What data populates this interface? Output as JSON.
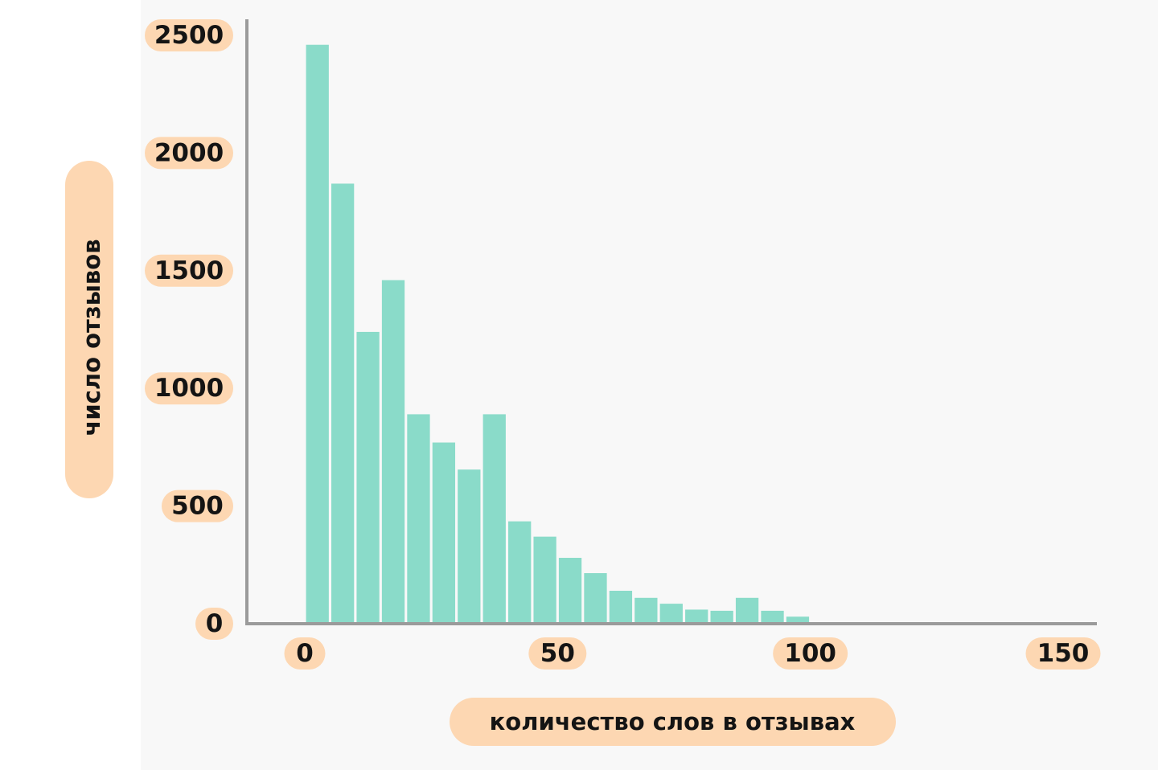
{
  "colors": {
    "background": "#ffffff",
    "panel": "#f8f8f8",
    "bar": "#8adbc9",
    "axis": "#9b9b9b",
    "pill": "#fdd7b2",
    "text": "#141414"
  },
  "chart_data": {
    "type": "bar",
    "title": "",
    "xlabel": "количество слов в отзывах",
    "ylabel": "число отзывов",
    "xlim": [
      0,
      150
    ],
    "ylim": [
      0,
      2500
    ],
    "x_ticks": [
      "0",
      "50",
      "100",
      "150"
    ],
    "y_ticks": [
      "0",
      "500",
      "1000",
      "1500",
      "2000",
      "2500"
    ],
    "grid": false,
    "legend": "none",
    "bin_width": 5,
    "bin_starts": [
      0,
      5,
      10,
      15,
      20,
      25,
      30,
      35,
      40,
      45,
      50,
      55,
      60,
      65,
      70,
      75,
      80,
      85,
      90,
      95
    ],
    "values": [
      2460,
      1870,
      1240,
      1460,
      890,
      770,
      655,
      890,
      435,
      370,
      280,
      215,
      140,
      110,
      85,
      60,
      55,
      110,
      55,
      30
    ]
  }
}
